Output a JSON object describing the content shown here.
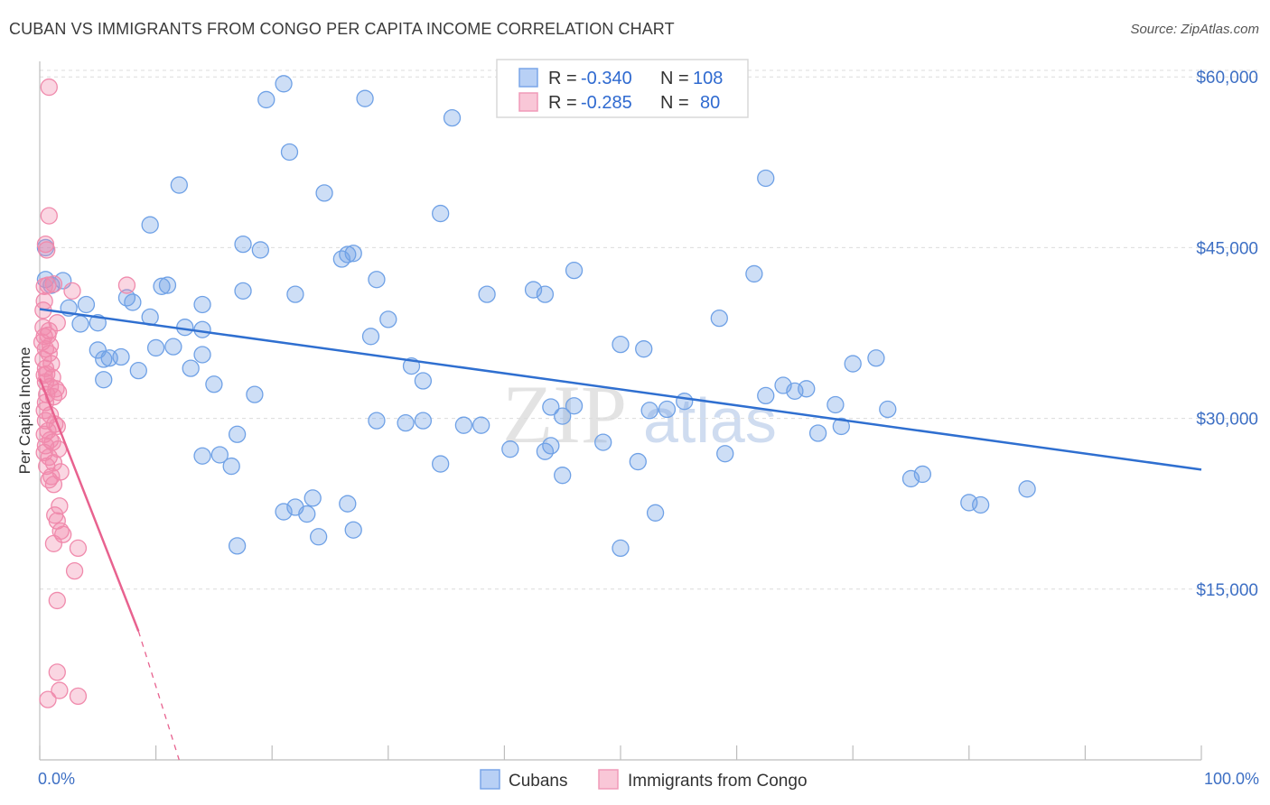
{
  "title": "CUBAN VS IMMIGRANTS FROM CONGO PER CAPITA INCOME CORRELATION CHART",
  "source": "Source: ZipAtlas.com",
  "watermark": {
    "zip": "ZIP",
    "atlas": "atlas"
  },
  "colors": {
    "cubans": "#6fa1e6",
    "congo": "#f08aac",
    "cubans_line": "#2f6fd0",
    "congo_line": "#e8628f",
    "axis_text": "#3d6fc4",
    "grid": "#dcdcdc"
  },
  "legend_box": {
    "rows": [
      {
        "r_label": "R =",
        "r_value": "-0.340",
        "n_label": "N =",
        "n_value": "108"
      },
      {
        "r_label": "R =",
        "r_value": "-0.285",
        "n_label": "N =",
        "n_value": "80"
      }
    ]
  },
  "bottom_legend": {
    "cubans": "Cubans",
    "congo": "Immigrants from Congo"
  },
  "chart_data": {
    "type": "scatter",
    "title": "CUBAN VS IMMIGRANTS FROM CONGO PER CAPITA INCOME CORRELATION CHART",
    "xlabel": "",
    "ylabel": "Per Capita Income",
    "x_ticks": [
      "0.0%",
      "100.0%"
    ],
    "y_ticks": [
      "$15,000",
      "$30,000",
      "$45,000",
      "$60,000"
    ],
    "y_tick_values": [
      15000,
      30000,
      45000,
      60000
    ],
    "xlim": [
      0,
      100
    ],
    "ylim": [
      0,
      62000
    ],
    "grid": true,
    "series": [
      {
        "name": "Cubans",
        "r": -0.34,
        "n": 108,
        "trend": {
          "x": [
            0,
            100
          ],
          "y": [
            39600,
            25500
          ]
        },
        "points": [
          [
            21,
            59400
          ],
          [
            19.5,
            58000
          ],
          [
            28,
            58100
          ],
          [
            35.5,
            56400
          ],
          [
            21.5,
            53400
          ],
          [
            62.5,
            51100
          ],
          [
            12,
            50500
          ],
          [
            24.5,
            49800
          ],
          [
            34.5,
            48000
          ],
          [
            9.5,
            47000
          ],
          [
            17.5,
            45300
          ],
          [
            19,
            44800
          ],
          [
            26,
            44000
          ],
          [
            27,
            44500
          ],
          [
            26.5,
            44400
          ],
          [
            0.5,
            45000
          ],
          [
            2,
            42100
          ],
          [
            0.5,
            42200
          ],
          [
            1,
            41700
          ],
          [
            11,
            41700
          ],
          [
            10.5,
            41600
          ],
          [
            17.5,
            41200
          ],
          [
            22,
            40900
          ],
          [
            29,
            42200
          ],
          [
            38.5,
            40900
          ],
          [
            42.5,
            41300
          ],
          [
            43.5,
            40900
          ],
          [
            46,
            43000
          ],
          [
            61.5,
            42700
          ],
          [
            7.5,
            40600
          ],
          [
            8,
            40200
          ],
          [
            4,
            40000
          ],
          [
            2.5,
            39700
          ],
          [
            14,
            40000
          ],
          [
            5,
            38400
          ],
          [
            3.5,
            38300
          ],
          [
            9.5,
            38900
          ],
          [
            12.5,
            38000
          ],
          [
            14,
            37800
          ],
          [
            30,
            38700
          ],
          [
            28.5,
            37200
          ],
          [
            50,
            36500
          ],
          [
            52,
            36100
          ],
          [
            58.5,
            38800
          ],
          [
            5,
            36000
          ],
          [
            10,
            36200
          ],
          [
            11.5,
            36300
          ],
          [
            14,
            35600
          ],
          [
            6,
            35300
          ],
          [
            5.5,
            35200
          ],
          [
            7,
            35400
          ],
          [
            72,
            35300
          ],
          [
            70,
            34800
          ],
          [
            8.5,
            34200
          ],
          [
            13,
            34400
          ],
          [
            5.5,
            33400
          ],
          [
            15,
            33000
          ],
          [
            33,
            33300
          ],
          [
            32,
            34600
          ],
          [
            64,
            32900
          ],
          [
            65,
            32400
          ],
          [
            62.5,
            32000
          ],
          [
            66,
            32600
          ],
          [
            18.5,
            32100
          ],
          [
            55.5,
            31500
          ],
          [
            52.5,
            30700
          ],
          [
            44,
            31000
          ],
          [
            46,
            31100
          ],
          [
            45,
            30200
          ],
          [
            54,
            30800
          ],
          [
            68.5,
            31200
          ],
          [
            69,
            29300
          ],
          [
            67,
            28700
          ],
          [
            73,
            30800
          ],
          [
            29,
            29800
          ],
          [
            31.5,
            29600
          ],
          [
            33,
            29800
          ],
          [
            36.5,
            29400
          ],
          [
            38,
            29400
          ],
          [
            17,
            28600
          ],
          [
            48.5,
            27900
          ],
          [
            51.5,
            26200
          ],
          [
            43.5,
            27100
          ],
          [
            44,
            27600
          ],
          [
            40.5,
            27300
          ],
          [
            14,
            26700
          ],
          [
            15.5,
            26800
          ],
          [
            16.5,
            25800
          ],
          [
            34.5,
            26000
          ],
          [
            45,
            25000
          ],
          [
            59,
            26900
          ],
          [
            75,
            24700
          ],
          [
            76,
            25100
          ],
          [
            85,
            23800
          ],
          [
            80,
            22600
          ],
          [
            81,
            22400
          ],
          [
            22,
            22200
          ],
          [
            26.5,
            22500
          ],
          [
            23.5,
            23000
          ],
          [
            21,
            21800
          ],
          [
            23,
            21600
          ],
          [
            53,
            21700
          ],
          [
            27,
            20200
          ],
          [
            24,
            19600
          ],
          [
            17,
            18800
          ],
          [
            50,
            18600
          ]
        ]
      },
      {
        "name": "Immigrants from Congo",
        "r": -0.285,
        "n": 80,
        "trend": {
          "x": [
            0,
            8.5
          ],
          "y": [
            33500,
            11300
          ]
        },
        "trend_dashed": {
          "x": [
            8.5,
            12
          ],
          "y": [
            11300,
            0
          ]
        },
        "points": [
          [
            0.8,
            59100
          ],
          [
            0.8,
            47800
          ],
          [
            0.5,
            45300
          ],
          [
            0.6,
            44800
          ],
          [
            0.4,
            41600
          ],
          [
            0.7,
            41700
          ],
          [
            1.2,
            41800
          ],
          [
            7.5,
            41700
          ],
          [
            2.8,
            41200
          ],
          [
            0.4,
            40300
          ],
          [
            0.3,
            39500
          ],
          [
            1.5,
            38400
          ],
          [
            0.3,
            38000
          ],
          [
            0.8,
            37700
          ],
          [
            0.4,
            37200
          ],
          [
            0.7,
            37300
          ],
          [
            0.2,
            36700
          ],
          [
            0.9,
            36400
          ],
          [
            0.5,
            36100
          ],
          [
            0.8,
            35700
          ],
          [
            0.3,
            35200
          ],
          [
            1,
            34800
          ],
          [
            0.5,
            34400
          ],
          [
            0.4,
            33800
          ],
          [
            0.6,
            33900
          ],
          [
            1.1,
            33600
          ],
          [
            0.5,
            33200
          ],
          [
            0.9,
            32800
          ],
          [
            1.4,
            32600
          ],
          [
            1.6,
            32300
          ],
          [
            0.6,
            32100
          ],
          [
            1.2,
            31900
          ],
          [
            0.5,
            31400
          ],
          [
            0.4,
            30700
          ],
          [
            0.9,
            30300
          ],
          [
            0.5,
            29800
          ],
          [
            1.3,
            29500
          ],
          [
            1.5,
            29300
          ],
          [
            0.7,
            28900
          ],
          [
            0.4,
            28600
          ],
          [
            0.9,
            28100
          ],
          [
            1.1,
            27900
          ],
          [
            0.5,
            27600
          ],
          [
            1.6,
            27300
          ],
          [
            0.4,
            27000
          ],
          [
            0.8,
            26600
          ],
          [
            1.2,
            26100
          ],
          [
            0.6,
            25800
          ],
          [
            1.8,
            25300
          ],
          [
            1,
            24900
          ],
          [
            0.8,
            24600
          ],
          [
            1.2,
            24200
          ],
          [
            1.7,
            22300
          ],
          [
            1.3,
            21500
          ],
          [
            1.5,
            21000
          ],
          [
            1.8,
            20100
          ],
          [
            2,
            19800
          ],
          [
            1.2,
            19000
          ],
          [
            3.3,
            18600
          ],
          [
            3,
            16600
          ],
          [
            1.5,
            14000
          ],
          [
            1.5,
            7700
          ],
          [
            1.7,
            6100
          ],
          [
            0.7,
            5300
          ],
          [
            3.3,
            5600
          ]
        ]
      }
    ]
  }
}
